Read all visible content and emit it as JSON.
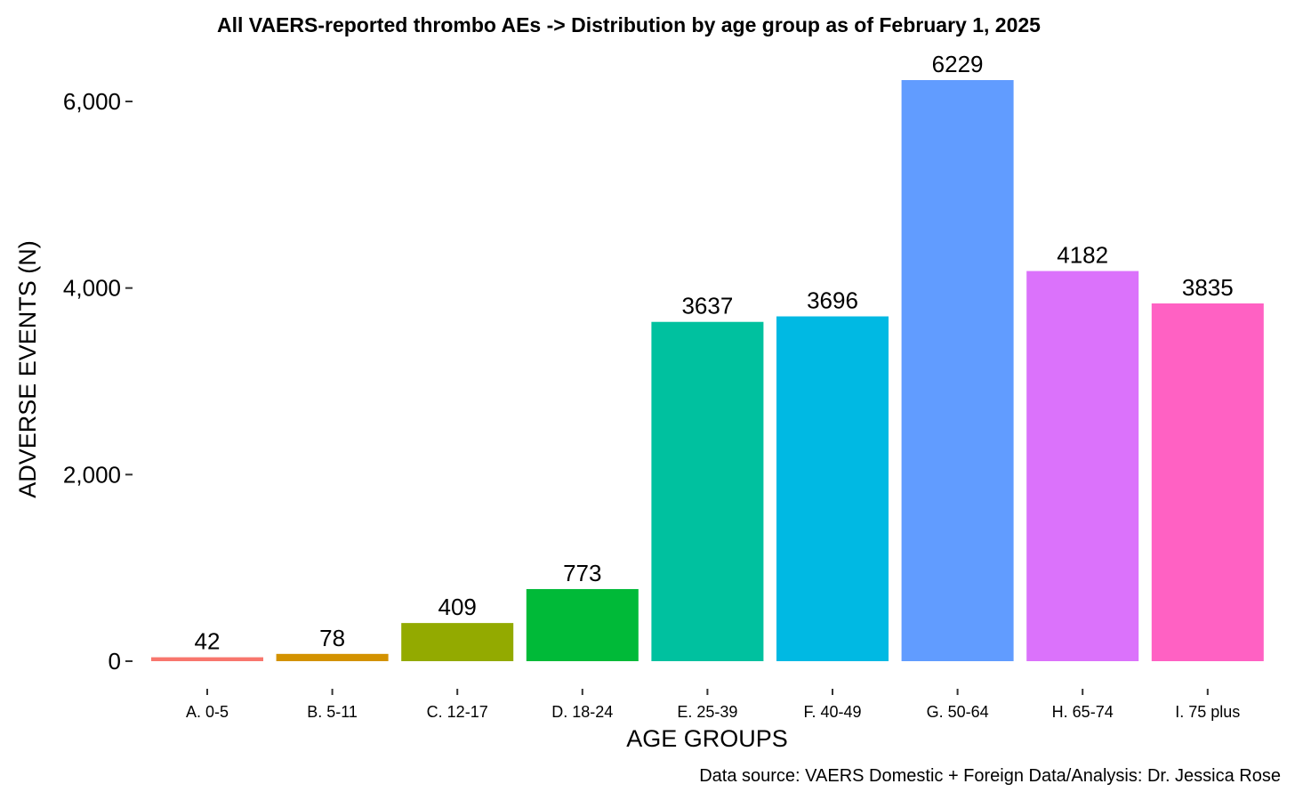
{
  "chart_data": {
    "type": "bar",
    "title": "All VAERS-reported thrombo AEs -> Distribution by age group as of February 1, 2025",
    "xlabel": "AGE GROUPS",
    "ylabel": "ADVERSE EVENTS (N)",
    "caption": "Data source: VAERS Domestic + Foreign Data/Analysis: Dr. Jessica Rose",
    "categories": [
      "A. 0-5",
      "B. 5-11",
      "C. 12-17",
      "D. 18-24",
      "E. 25-39",
      "F. 40-49",
      "G. 50-64",
      "H. 65-74",
      "I. 75 plus"
    ],
    "values": [
      42,
      78,
      409,
      773,
      3637,
      3696,
      6229,
      4182,
      3835
    ],
    "value_labels": [
      "42",
      "78",
      "409",
      "773",
      "3637",
      "3696",
      "6229",
      "4182",
      "3835"
    ],
    "colors": [
      "#F8766D",
      "#D39200",
      "#93AA00",
      "#00BA38",
      "#00C19F",
      "#00B9E3",
      "#619CFF",
      "#DB72FB",
      "#FF61C3"
    ],
    "yticks": [
      0,
      2000,
      4000,
      6000
    ],
    "ytick_labels": [
      "0",
      "2,000",
      "4,000",
      "6,000"
    ],
    "ylim": [
      -300,
      6550
    ],
    "grid": false,
    "legend": "none"
  }
}
